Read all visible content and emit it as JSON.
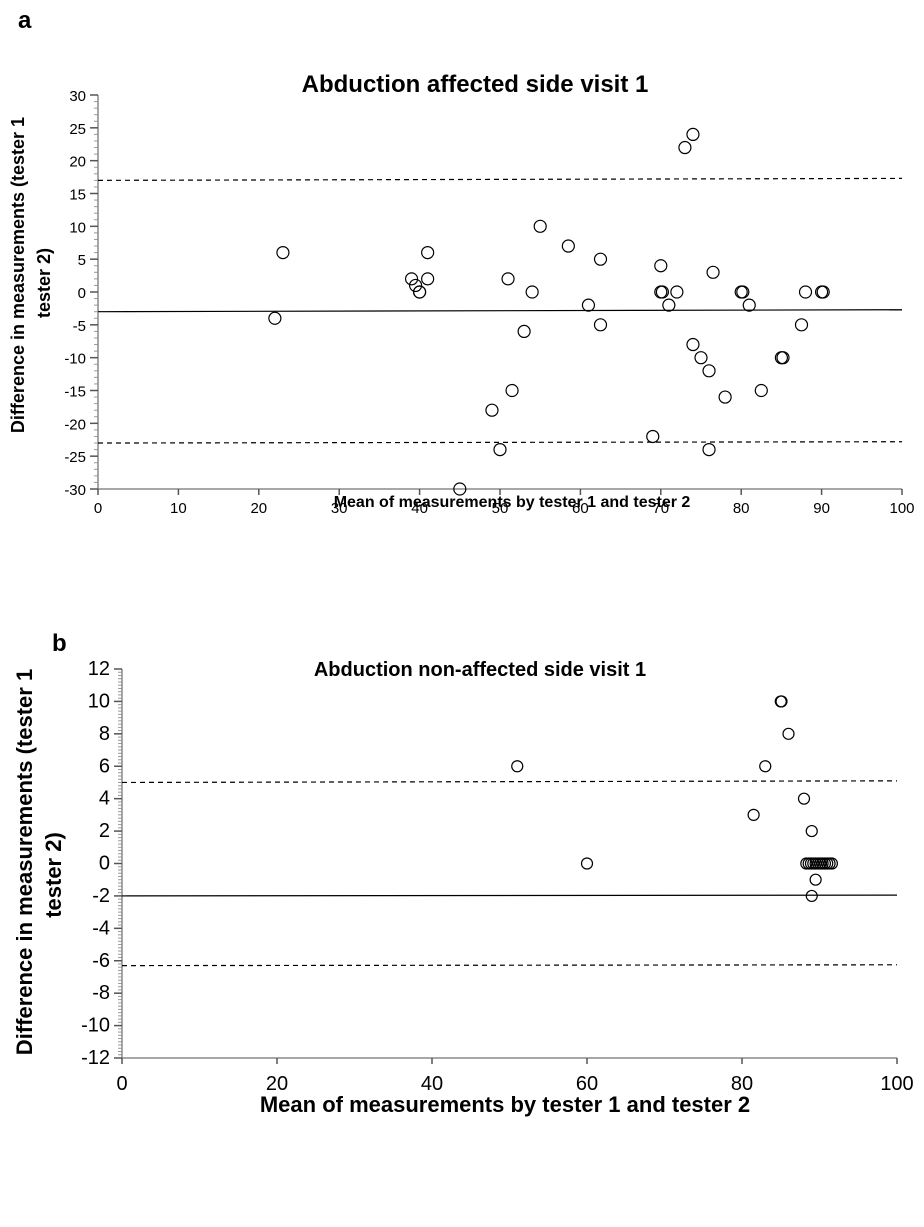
{
  "chart_data": [
    {
      "type": "scatter",
      "panel_label": "a",
      "title": "Abduction affected side visit 1",
      "xlabel": "Mean of measurements by tester 1 and tester 2",
      "ylabel_line1": "Difference in measurements (tester 1",
      "ylabel_line2": "tester 2)",
      "xlim": [
        0,
        100
      ],
      "ylim": [
        -30,
        30
      ],
      "x_ticks": [
        0,
        10,
        20,
        30,
        40,
        50,
        60,
        70,
        80,
        90,
        100
      ],
      "y_ticks": [
        30,
        25,
        20,
        15,
        10,
        5,
        0,
        -5,
        -10,
        -15,
        -20,
        -25,
        -30
      ],
      "mean_line": [
        -3,
        -2.7
      ],
      "upper_limit": [
        17,
        17.3
      ],
      "lower_limit": [
        -23,
        -22.8
      ],
      "points": [
        [
          22,
          -4
        ],
        [
          23,
          6
        ],
        [
          39,
          2
        ],
        [
          39.5,
          1
        ],
        [
          40,
          0
        ],
        [
          40,
          0
        ],
        [
          41,
          6
        ],
        [
          41,
          2
        ],
        [
          45,
          -30
        ],
        [
          49,
          -18
        ],
        [
          50,
          -24
        ],
        [
          51,
          2
        ],
        [
          51.5,
          -15
        ],
        [
          53,
          -6
        ],
        [
          54,
          0
        ],
        [
          55,
          10
        ],
        [
          58.5,
          7
        ],
        [
          61,
          -2
        ],
        [
          62.5,
          5
        ],
        [
          62.5,
          -5
        ],
        [
          69,
          -22
        ],
        [
          70,
          4
        ],
        [
          70,
          0
        ],
        [
          70.2,
          0
        ],
        [
          71,
          -2
        ],
        [
          72,
          0
        ],
        [
          73,
          22
        ],
        [
          74,
          24
        ],
        [
          74,
          -8
        ],
        [
          75,
          -10
        ],
        [
          76,
          -12
        ],
        [
          76,
          -24
        ],
        [
          76.5,
          3
        ],
        [
          78,
          -16
        ],
        [
          80,
          0
        ],
        [
          80.2,
          0
        ],
        [
          81,
          -2
        ],
        [
          82.5,
          -15
        ],
        [
          85,
          -10
        ],
        [
          85.2,
          -10
        ],
        [
          87.5,
          -5
        ],
        [
          88,
          0
        ],
        [
          90,
          0
        ],
        [
          90.2,
          0
        ]
      ]
    },
    {
      "type": "scatter",
      "panel_label": "b",
      "title": "Abduction non-affected side visit 1",
      "xlabel": "Mean of measurements by tester 1 and tester 2",
      "ylabel_line1": "Difference in measurements (tester 1",
      "ylabel_line2": "tester 2)",
      "xlim": [
        0,
        100
      ],
      "ylim": [
        -12,
        12
      ],
      "x_ticks": [
        0,
        20,
        40,
        60,
        80,
        100
      ],
      "y_ticks": [
        12,
        10,
        8,
        6,
        4,
        2,
        0,
        -2,
        -4,
        -6,
        -8,
        -10,
        -12
      ],
      "mean_line": [
        -2,
        -1.95
      ],
      "upper_limit": [
        5,
        5.1
      ],
      "lower_limit": [
        -6.3,
        -6.25
      ],
      "points": [
        [
          51,
          6
        ],
        [
          60,
          0
        ],
        [
          81.5,
          3
        ],
        [
          83,
          6
        ],
        [
          85,
          10
        ],
        [
          85.1,
          10
        ],
        [
          86,
          8
        ],
        [
          88,
          4
        ],
        [
          88.3,
          0
        ],
        [
          88.6,
          0
        ],
        [
          88.9,
          0
        ],
        [
          89,
          2
        ],
        [
          89,
          -2
        ],
        [
          89.2,
          0
        ],
        [
          89.5,
          -1
        ],
        [
          89.5,
          0
        ],
        [
          89.8,
          0
        ],
        [
          90.1,
          0
        ],
        [
          90.4,
          0
        ],
        [
          90.7,
          0
        ],
        [
          91,
          0
        ],
        [
          91.3,
          0
        ],
        [
          91.6,
          0
        ]
      ]
    }
  ]
}
